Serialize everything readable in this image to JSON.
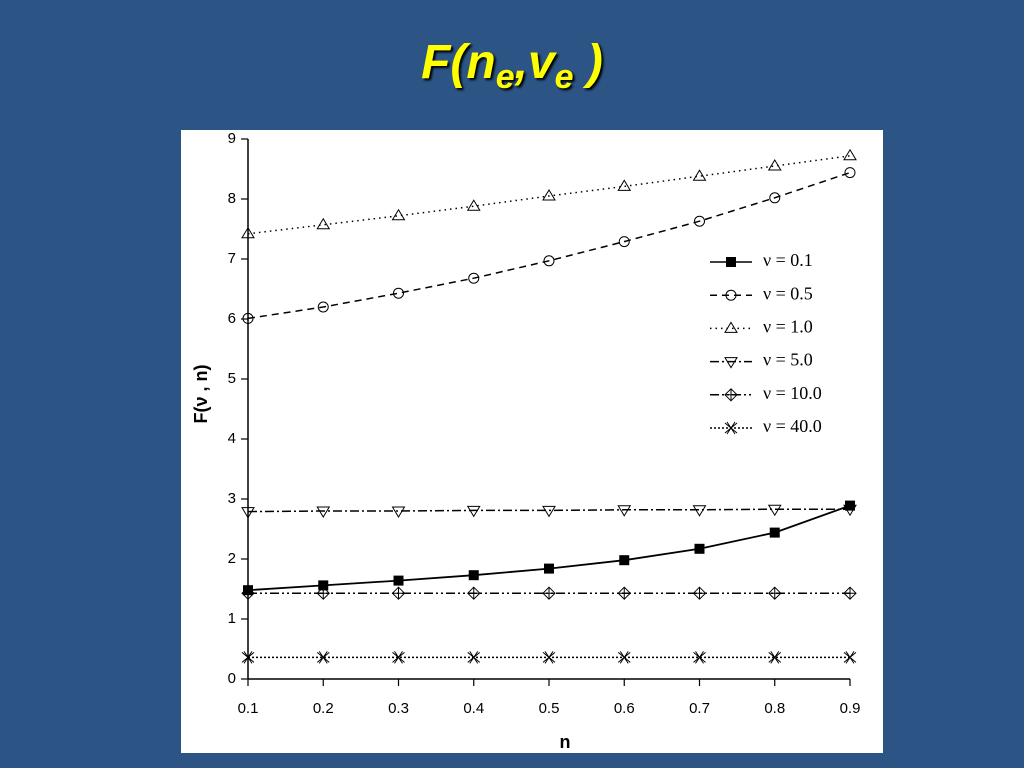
{
  "chart_data": {
    "type": "line",
    "title": [
      "F(n",
      "e",
      ",v",
      "e",
      " )"
    ],
    "xlabel": "n",
    "ylabel": "F(ν , n)",
    "x": [
      0.1,
      0.2,
      0.3,
      0.4,
      0.5,
      0.6,
      0.7,
      0.8,
      0.9
    ],
    "xlim": [
      0.1,
      0.9
    ],
    "xticks": [
      0.1,
      0.2,
      0.3,
      0.4,
      0.5,
      0.6,
      0.7,
      0.8,
      0.9
    ],
    "ylim": [
      0,
      9
    ],
    "yticks": [
      0,
      1,
      2,
      3,
      4,
      5,
      6,
      7,
      8,
      9
    ],
    "series": [
      {
        "name": "ν = 0.1",
        "color": "#000000",
        "linestyle": "solid",
        "marker": "square",
        "values": [
          1.48,
          1.56,
          1.64,
          1.73,
          1.84,
          1.98,
          2.17,
          2.44,
          2.89
        ]
      },
      {
        "name": "ν = 0.5",
        "color": "#000000",
        "linestyle": "dashed",
        "marker": "circle",
        "values": [
          6.01,
          6.2,
          6.43,
          6.68,
          6.97,
          7.29,
          7.63,
          8.02,
          8.44
        ]
      },
      {
        "name": "ν = 1.0",
        "color": "#000000",
        "linestyle": "dotted",
        "marker": "triangle-up",
        "values": [
          7.42,
          7.57,
          7.72,
          7.88,
          8.05,
          8.21,
          8.38,
          8.55,
          8.72
        ]
      },
      {
        "name": "ν = 5.0",
        "color": "#000000",
        "linestyle": "dashdot",
        "marker": "triangle-down",
        "values": [
          2.79,
          2.8,
          2.8,
          2.81,
          2.81,
          2.82,
          2.82,
          2.83,
          2.83
        ]
      },
      {
        "name": "ν = 10.0",
        "color": "#000000",
        "linestyle": "dashdotdot",
        "marker": "diamond-plus",
        "values": [
          1.43,
          1.43,
          1.43,
          1.43,
          1.43,
          1.43,
          1.43,
          1.43,
          1.43
        ]
      },
      {
        "name": "ν = 40.0",
        "color": "#000000",
        "linestyle": "shortdot",
        "marker": "x-square",
        "values": [
          0.36,
          0.36,
          0.36,
          0.36,
          0.36,
          0.36,
          0.36,
          0.36,
          0.36
        ]
      }
    ]
  }
}
